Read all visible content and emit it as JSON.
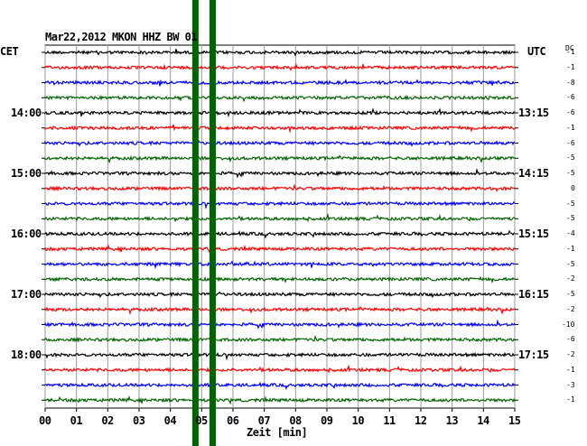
{
  "header": {
    "title": "Mar22,2012   MKON HHZ BW 01",
    "left_tz": "CET",
    "right_tz": "UTC",
    "dc_label": "DC"
  },
  "chart_data": {
    "type": "line",
    "title": "Mar22,2012   MKON HHZ BW 01",
    "xlabel": "Zeit [min]",
    "xlim": [
      0,
      15
    ],
    "x_ticks": [
      "00",
      "01",
      "02",
      "03",
      "04",
      "05",
      "06",
      "07",
      "08",
      "09",
      "10",
      "11",
      "12",
      "13",
      "14",
      "15"
    ],
    "traces": 24,
    "trace_colors": [
      "#000000",
      "#ff0000",
      "#0000ff",
      "#006400"
    ],
    "left_hour_labels": [
      {
        "trace": 4,
        "label": "14:00"
      },
      {
        "trace": 8,
        "label": "15:00"
      },
      {
        "trace": 12,
        "label": "16:00"
      },
      {
        "trace": 16,
        "label": "17:00"
      },
      {
        "trace": 20,
        "label": "18:00"
      }
    ],
    "right_hour_labels": [
      {
        "trace": 4,
        "label": "13:15"
      },
      {
        "trace": 8,
        "label": "14:15"
      },
      {
        "trace": 12,
        "label": "15:15"
      },
      {
        "trace": 16,
        "label": "16:15"
      },
      {
        "trace": 20,
        "label": "17:15"
      }
    ],
    "dc_offsets": [
      "-1",
      "-1",
      "-8",
      "-6",
      "-6",
      "-1",
      "-6",
      "-5",
      "-5",
      "0",
      "-5",
      "-5",
      "-4",
      "-1",
      "-5",
      "-2",
      "-5",
      "-2",
      "-10",
      "-6",
      "-2",
      "-1",
      "-3",
      "-1"
    ],
    "highlight_lines": [
      {
        "x_min": 4.8,
        "color": "#006400"
      },
      {
        "x_min": 5.35,
        "color": "#006400"
      }
    ]
  }
}
